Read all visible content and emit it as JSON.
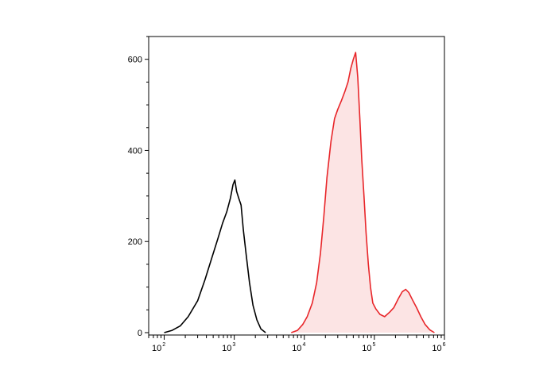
{
  "chart_data": {
    "type": "area",
    "title": "",
    "xlabel": "",
    "ylabel": "",
    "x_scale": "log",
    "xlim": [
      60,
      1000000
    ],
    "ylim": [
      0,
      650
    ],
    "grid": false,
    "legend": "none",
    "y_ticks": [
      0,
      200,
      400,
      600
    ],
    "y_tick_labels": [
      "0",
      "200",
      "400",
      "600"
    ],
    "x_ticks": [
      100,
      1000,
      10000,
      100000,
      1000000
    ],
    "x_tick_labels": [
      {
        "base": "10",
        "exp": "2"
      },
      {
        "base": "10",
        "exp": "3"
      },
      {
        "base": "10",
        "exp": "4"
      },
      {
        "base": "10",
        "exp": "5"
      },
      {
        "base": "10",
        "exp": "6"
      }
    ],
    "series": [
      {
        "style": "line",
        "color": "#000000",
        "x": [
          100,
          130,
          170,
          220,
          300,
          380,
          480,
          580,
          680,
          780,
          880,
          960,
          1020,
          1080,
          1160,
          1250,
          1350,
          1480,
          1650,
          1850,
          2100,
          2400,
          2800
        ],
        "y": [
          0,
          5,
          15,
          35,
          70,
          115,
          165,
          205,
          240,
          265,
          295,
          325,
          335,
          310,
          295,
          280,
          225,
          170,
          110,
          60,
          28,
          8,
          0
        ]
      },
      {
        "style": "area",
        "color": "#e8262a",
        "fill": "#fce4e4",
        "x": [
          6500,
          8000,
          9500,
          11000,
          13000,
          15000,
          17000,
          19000,
          21000,
          24000,
          27000,
          30000,
          34000,
          38000,
          42000,
          46000,
          50000,
          54000,
          58000,
          62000,
          66000,
          71000,
          76000,
          82000,
          88000,
          95000,
          105000,
          120000,
          140000,
          165000,
          190000,
          220000,
          250000,
          280000,
          310000,
          350000,
          400000,
          460000,
          530000,
          620000,
          720000
        ],
        "y": [
          0,
          5,
          18,
          35,
          65,
          110,
          175,
          255,
          340,
          420,
          470,
          490,
          510,
          530,
          550,
          580,
          600,
          615,
          560,
          470,
          380,
          300,
          220,
          150,
          100,
          65,
          52,
          40,
          35,
          45,
          55,
          75,
          90,
          95,
          88,
          72,
          55,
          35,
          18,
          6,
          0
        ]
      }
    ]
  }
}
